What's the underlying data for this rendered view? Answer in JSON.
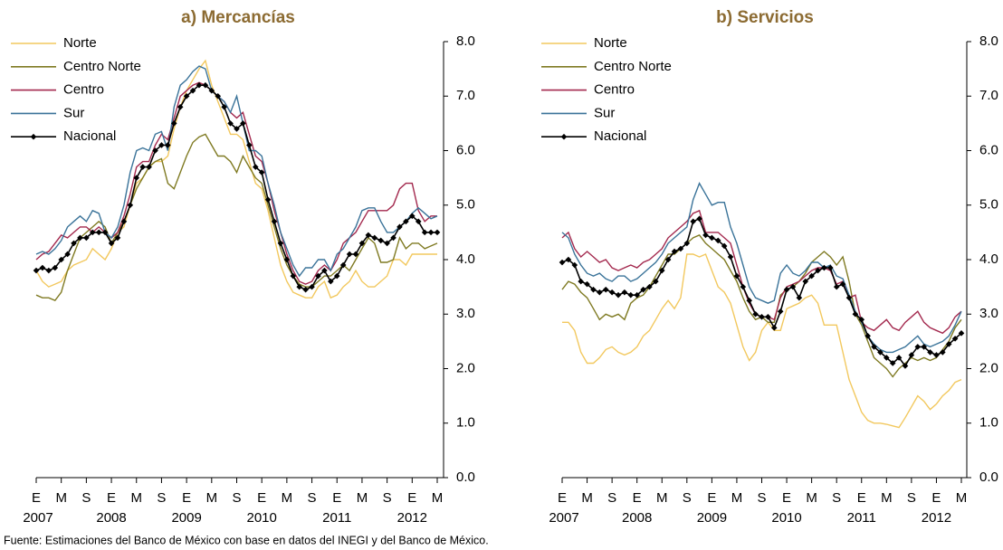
{
  "chart_data": [
    {
      "type": "line",
      "title": "a) Mercancías",
      "legend": "upper left",
      "categories": [
        "E",
        null,
        null,
        null,
        "M",
        null,
        null,
        null,
        "S",
        null,
        null,
        null,
        "E",
        null,
        null,
        null,
        "M",
        null,
        null,
        null,
        "S",
        null,
        null,
        null,
        "E",
        null,
        null,
        null,
        "M",
        null,
        null,
        null,
        "S",
        null,
        null,
        null,
        "E",
        null,
        null,
        null,
        "M",
        null,
        null,
        null,
        "S",
        null,
        null,
        null,
        "E",
        null,
        null,
        null,
        "M",
        null,
        null,
        null,
        "S",
        null,
        null,
        null,
        "E",
        null,
        null,
        null,
        "M"
      ],
      "years": [
        "2007",
        "2008",
        "2009",
        "2010",
        "2011",
        "2012"
      ],
      "ylim": [
        0,
        8
      ],
      "yticks": [
        {
          "value": 0,
          "label": "0.0"
        },
        {
          "value": 1,
          "label": "1.0"
        },
        {
          "value": 2,
          "label": "2.0"
        },
        {
          "value": 3,
          "label": "3.0"
        },
        {
          "value": 4,
          "label": "4.0"
        },
        {
          "value": 5,
          "label": "5.0"
        },
        {
          "value": 6,
          "label": "6.0"
        },
        {
          "value": 7,
          "label": "7.0"
        },
        {
          "value": 8,
          "label": "8.0"
        }
      ],
      "series": [
        {
          "name": "Norte",
          "color": "#f2c85e",
          "values": [
            3.8,
            3.6,
            3.5,
            3.55,
            3.6,
            3.8,
            3.9,
            3.95,
            4.0,
            4.2,
            4.1,
            4.0,
            4.2,
            4.5,
            4.6,
            5.0,
            5.4,
            5.5,
            5.7,
            5.8,
            5.8,
            5.9,
            6.4,
            6.8,
            7.1,
            7.3,
            7.5,
            7.65,
            7.2,
            6.9,
            6.6,
            6.3,
            6.3,
            6.2,
            5.8,
            5.4,
            5.3,
            4.9,
            4.4,
            3.9,
            3.6,
            3.4,
            3.35,
            3.3,
            3.3,
            3.5,
            3.6,
            3.3,
            3.35,
            3.5,
            3.6,
            3.8,
            3.6,
            3.5,
            3.5,
            3.6,
            3.7,
            4.0,
            4.0,
            3.9,
            4.1,
            4.1,
            4.1,
            4.1,
            4.1
          ]
        },
        {
          "name": "Centro Norte",
          "color": "#7f7a22",
          "values": [
            3.35,
            3.3,
            3.3,
            3.25,
            3.4,
            3.8,
            4.1,
            4.4,
            4.5,
            4.6,
            4.7,
            4.6,
            4.3,
            4.5,
            4.7,
            5.0,
            5.3,
            5.5,
            5.7,
            5.8,
            5.85,
            5.4,
            5.3,
            5.6,
            5.9,
            6.15,
            6.25,
            6.3,
            6.1,
            5.9,
            5.9,
            5.8,
            5.6,
            5.9,
            5.7,
            5.5,
            5.4,
            5.0,
            4.6,
            4.2,
            3.9,
            3.7,
            3.55,
            3.5,
            3.5,
            3.6,
            3.7,
            3.7,
            3.8,
            3.9,
            3.8,
            4.0,
            4.2,
            4.4,
            4.3,
            3.95,
            3.95,
            4.0,
            4.4,
            4.2,
            4.3,
            4.3,
            4.2,
            4.25,
            4.3
          ]
        },
        {
          "name": "Centro",
          "color": "#a3294e",
          "values": [
            4.0,
            4.1,
            4.15,
            4.3,
            4.45,
            4.4,
            4.5,
            4.6,
            4.6,
            4.5,
            4.6,
            4.5,
            4.4,
            4.5,
            4.8,
            5.2,
            5.7,
            5.8,
            5.8,
            6.1,
            6.3,
            6.2,
            6.6,
            7.0,
            7.1,
            7.2,
            7.25,
            7.2,
            7.1,
            7.0,
            6.9,
            6.7,
            6.6,
            6.7,
            6.3,
            5.9,
            5.8,
            5.4,
            4.9,
            4.5,
            4.1,
            3.8,
            3.6,
            3.55,
            3.6,
            3.8,
            3.9,
            3.8,
            4.0,
            4.3,
            4.4,
            4.5,
            4.7,
            4.9,
            4.9,
            4.9,
            4.9,
            5.0,
            5.3,
            5.4,
            5.4,
            4.9,
            4.7,
            4.8,
            4.8
          ]
        },
        {
          "name": "Sur",
          "color": "#3a7399",
          "values": [
            4.1,
            4.15,
            4.1,
            4.2,
            4.35,
            4.6,
            4.7,
            4.8,
            4.7,
            4.9,
            4.85,
            4.5,
            4.4,
            4.6,
            5.0,
            5.6,
            6.0,
            6.05,
            6.0,
            6.3,
            6.35,
            6.0,
            6.8,
            7.2,
            7.3,
            7.45,
            7.55,
            7.5,
            7.1,
            7.0,
            6.9,
            6.7,
            7.0,
            6.5,
            6.0,
            6.0,
            5.9,
            5.4,
            5.0,
            4.5,
            4.2,
            3.9,
            3.7,
            3.85,
            3.85,
            4.0,
            4.0,
            3.8,
            4.1,
            4.2,
            4.4,
            4.6,
            4.9,
            4.95,
            4.95,
            4.7,
            4.5,
            4.5,
            4.6,
            4.7,
            4.85,
            4.95,
            4.85,
            4.75,
            4.8
          ]
        },
        {
          "name": "Nacional",
          "color": "#000000",
          "marker": "diamond",
          "values": [
            3.8,
            3.85,
            3.8,
            3.85,
            4.0,
            4.1,
            4.3,
            4.4,
            4.4,
            4.5,
            4.5,
            4.5,
            4.3,
            4.4,
            4.7,
            5.0,
            5.5,
            5.7,
            5.7,
            6.0,
            6.1,
            6.1,
            6.5,
            6.8,
            7.0,
            7.1,
            7.2,
            7.2,
            7.1,
            7.0,
            6.8,
            6.5,
            6.4,
            6.5,
            6.1,
            5.7,
            5.6,
            5.1,
            4.7,
            4.3,
            4.0,
            3.7,
            3.5,
            3.45,
            3.5,
            3.7,
            3.8,
            3.6,
            3.7,
            3.9,
            4.1,
            4.1,
            4.3,
            4.45,
            4.4,
            4.35,
            4.3,
            4.4,
            4.6,
            4.7,
            4.8,
            4.7,
            4.5,
            4.5,
            4.5
          ]
        }
      ]
    },
    {
      "type": "line",
      "title": "b) Servicios",
      "legend": "upper left",
      "categories": [
        "E",
        null,
        null,
        null,
        "M",
        null,
        null,
        null,
        "S",
        null,
        null,
        null,
        "E",
        null,
        null,
        null,
        "M",
        null,
        null,
        null,
        "S",
        null,
        null,
        null,
        "E",
        null,
        null,
        null,
        "M",
        null,
        null,
        null,
        "S",
        null,
        null,
        null,
        "E",
        null,
        null,
        null,
        "M",
        null,
        null,
        null,
        "S",
        null,
        null,
        null,
        "E",
        null,
        null,
        null,
        "M",
        null,
        null,
        null,
        "S",
        null,
        null,
        null,
        "E",
        null,
        null,
        null,
        "M"
      ],
      "years": [
        "2007",
        "2008",
        "2009",
        "2010",
        "2011",
        "2012"
      ],
      "ylim": [
        0,
        8
      ],
      "yticks": [
        {
          "value": 0,
          "label": "0.0"
        },
        {
          "value": 1,
          "label": "1.0"
        },
        {
          "value": 2,
          "label": "2.0"
        },
        {
          "value": 3,
          "label": "3.0"
        },
        {
          "value": 4,
          "label": "4.0"
        },
        {
          "value": 5,
          "label": "5.0"
        },
        {
          "value": 6,
          "label": "6.0"
        },
        {
          "value": 7,
          "label": "7.0"
        },
        {
          "value": 8,
          "label": "8.0"
        }
      ],
      "series": [
        {
          "name": "Norte",
          "color": "#f2c85e",
          "values": [
            2.85,
            2.85,
            2.7,
            2.3,
            2.1,
            2.1,
            2.2,
            2.35,
            2.4,
            2.3,
            2.25,
            2.3,
            2.4,
            2.6,
            2.7,
            2.9,
            3.1,
            3.25,
            3.1,
            3.3,
            4.1,
            4.1,
            4.05,
            4.1,
            3.8,
            3.5,
            3.4,
            3.2,
            2.8,
            2.4,
            2.15,
            2.3,
            2.7,
            2.85,
            2.7,
            2.7,
            3.1,
            3.15,
            3.2,
            3.3,
            3.35,
            3.2,
            2.8,
            2.8,
            2.8,
            2.3,
            1.8,
            1.5,
            1.2,
            1.05,
            1.0,
            1.0,
            0.98,
            0.95,
            0.92,
            1.1,
            1.3,
            1.5,
            1.4,
            1.25,
            1.35,
            1.5,
            1.6,
            1.75,
            1.8
          ]
        },
        {
          "name": "Centro Norte",
          "color": "#7f7a22",
          "values": [
            3.45,
            3.6,
            3.55,
            3.4,
            3.3,
            3.1,
            2.9,
            3.0,
            2.95,
            3.0,
            2.9,
            3.2,
            3.3,
            3.35,
            3.5,
            3.7,
            3.9,
            4.1,
            4.1,
            4.2,
            4.3,
            4.4,
            4.45,
            4.3,
            4.2,
            4.1,
            4.0,
            3.8,
            3.6,
            3.3,
            3.05,
            2.9,
            2.95,
            2.85,
            2.85,
            3.35,
            3.45,
            3.5,
            3.6,
            3.75,
            3.95,
            4.05,
            4.15,
            4.05,
            3.9,
            4.05,
            3.6,
            3.0,
            2.8,
            2.5,
            2.2,
            2.1,
            2.0,
            1.85,
            2.0,
            2.1,
            2.2,
            2.15,
            2.2,
            2.15,
            2.2,
            2.35,
            2.5,
            2.75,
            2.9
          ]
        },
        {
          "name": "Centro",
          "color": "#a3294e",
          "values": [
            4.4,
            4.5,
            4.2,
            4.05,
            4.15,
            4.05,
            3.95,
            4.0,
            3.85,
            3.8,
            3.85,
            3.9,
            3.85,
            3.95,
            4.0,
            4.1,
            4.2,
            4.4,
            4.5,
            4.6,
            4.7,
            4.85,
            4.9,
            4.5,
            4.5,
            4.5,
            4.4,
            4.3,
            3.9,
            3.5,
            3.2,
            3.0,
            2.95,
            2.95,
            2.9,
            3.3,
            3.5,
            3.55,
            3.6,
            3.7,
            3.8,
            3.85,
            3.85,
            3.8,
            3.55,
            3.6,
            3.3,
            3.35,
            2.85,
            2.75,
            2.7,
            2.8,
            2.9,
            2.75,
            2.7,
            2.85,
            2.95,
            3.05,
            2.85,
            2.75,
            2.7,
            2.65,
            2.75,
            2.95,
            3.05
          ]
        },
        {
          "name": "Sur",
          "color": "#3a7399",
          "values": [
            4.5,
            4.4,
            4.1,
            3.9,
            3.75,
            3.7,
            3.75,
            3.65,
            3.6,
            3.7,
            3.7,
            3.6,
            3.65,
            3.75,
            3.85,
            3.95,
            4.1,
            4.3,
            4.4,
            4.5,
            4.6,
            5.1,
            5.4,
            5.2,
            5.0,
            5.05,
            5.05,
            4.6,
            4.3,
            3.9,
            3.5,
            3.3,
            3.25,
            3.2,
            3.25,
            3.75,
            3.9,
            3.75,
            3.7,
            3.8,
            3.95,
            3.95,
            3.85,
            3.9,
            3.7,
            3.65,
            3.35,
            3.05,
            2.85,
            2.6,
            2.45,
            2.35,
            2.3,
            2.3,
            2.35,
            2.4,
            2.5,
            2.6,
            2.45,
            2.4,
            2.45,
            2.5,
            2.6,
            2.8,
            3.05
          ]
        },
        {
          "name": "Nacional",
          "color": "#000000",
          "marker": "diamond",
          "values": [
            3.95,
            4.0,
            3.9,
            3.6,
            3.55,
            3.45,
            3.4,
            3.45,
            3.4,
            3.35,
            3.4,
            3.35,
            3.35,
            3.45,
            3.5,
            3.6,
            3.8,
            4.0,
            4.15,
            4.2,
            4.3,
            4.7,
            4.75,
            4.45,
            4.4,
            4.35,
            4.25,
            4.05,
            3.7,
            3.5,
            3.25,
            3.0,
            2.95,
            2.95,
            2.75,
            3.05,
            3.45,
            3.5,
            3.3,
            3.6,
            3.7,
            3.8,
            3.85,
            3.85,
            3.5,
            3.55,
            3.3,
            3.0,
            2.9,
            2.6,
            2.4,
            2.3,
            2.2,
            2.1,
            2.2,
            2.05,
            2.25,
            2.4,
            2.4,
            2.3,
            2.25,
            2.3,
            2.45,
            2.55,
            2.65
          ]
        }
      ]
    }
  ],
  "source": "Fuente: Estimaciones del Banco de México con base en datos del INEGI y del Banco de México."
}
